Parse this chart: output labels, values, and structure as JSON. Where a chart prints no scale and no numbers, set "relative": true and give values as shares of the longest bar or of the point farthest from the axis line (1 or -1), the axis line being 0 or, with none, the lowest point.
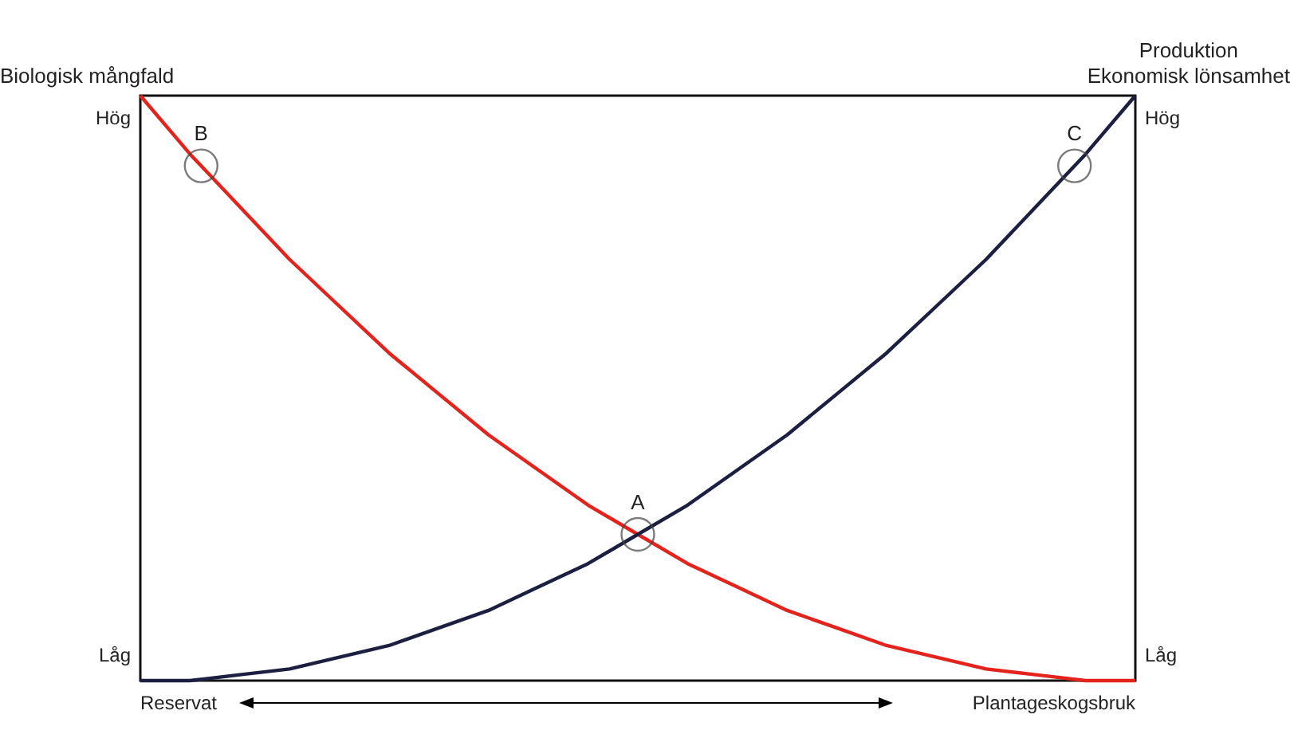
{
  "chart_data": {
    "type": "line",
    "relative": true,
    "ylabel": "Biologisk mångfald",
    "y2label": "Produktion\nEkonomisk lönsamhet",
    "categories": [
      null,
      null,
      null,
      null,
      null,
      null,
      null,
      null,
      null,
      null,
      null,
      null,
      null,
      null,
      null,
      null,
      null,
      null,
      null,
      null,
      null
    ],
    "series": [
      {
        "color": "#e3231c",
        "values": [
          1,
          0.9,
          0.81,
          0.72,
          0.64,
          0.56,
          0.49,
          0.42,
          0.36,
          0.3,
          0.25,
          0.2,
          0.16,
          0.12,
          0.09,
          0.06,
          0.04,
          0.02,
          0.01,
          0,
          0
        ]
      },
      {
        "color": "#1c1f3f",
        "values": [
          0,
          0,
          0.01,
          0.02,
          0.04,
          0.06,
          0.09,
          0.12,
          0.16,
          0.2,
          0.25,
          0.3,
          0.36,
          0.42,
          0.49,
          0.56,
          0.64,
          0.72,
          0.81,
          0.9,
          1
        ]
      }
    ],
    "annotations": [
      "Hög",
      "Låg",
      "Hög",
      "Låg",
      "Reservat",
      "Plantageskogsbruk",
      {
        "text": "A",
        "y": 0.25
      },
      {
        "text": "B",
        "y": 0.88
      },
      {
        "text": "C",
        "y": 0.88
      }
    ],
    "marker": "none",
    "line_style": "solid"
  }
}
